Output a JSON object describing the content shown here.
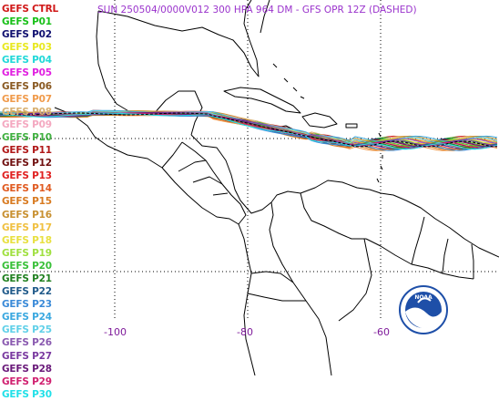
{
  "title": "SUN 250504/0000V012  300 HPA 964 DM - GFS OPR 12Z (DASHED)",
  "legend": [
    {
      "label": "GEFS CTRL",
      "color": "#d01818"
    },
    {
      "label": "GEFS P01",
      "color": "#18c018"
    },
    {
      "label": "GEFS P02",
      "color": "#101070"
    },
    {
      "label": "GEFS P03",
      "color": "#e8e820"
    },
    {
      "label": "GEFS P04",
      "color": "#20d8d8"
    },
    {
      "label": "GEFS P05",
      "color": "#e020e0"
    },
    {
      "label": "GEFS P06",
      "color": "#8a5a22"
    },
    {
      "label": "GEFS P07",
      "color": "#f09a4a"
    },
    {
      "label": "GEFS P08",
      "color": "#d8b070"
    },
    {
      "label": "GEFS P09",
      "color": "#f4a8c0"
    },
    {
      "label": "GEFS P10",
      "color": "#40b040"
    },
    {
      "label": "GEFS P11",
      "color": "#b01818"
    },
    {
      "label": "GEFS P12",
      "color": "#701010"
    },
    {
      "label": "GEFS P13",
      "color": "#e02020"
    },
    {
      "label": "GEFS P14",
      "color": "#e05a20"
    },
    {
      "label": "GEFS P15",
      "color": "#d87a20"
    },
    {
      "label": "GEFS P16",
      "color": "#c89030"
    },
    {
      "label": "GEFS P17",
      "color": "#f0c040"
    },
    {
      "label": "GEFS P18",
      "color": "#e8e040"
    },
    {
      "label": "GEFS P19",
      "color": "#a0e040"
    },
    {
      "label": "GEFS P20",
      "color": "#38c038"
    },
    {
      "label": "GEFS P21",
      "color": "#208020"
    },
    {
      "label": "GEFS P22",
      "color": "#205a8a"
    },
    {
      "label": "GEFS P23",
      "color": "#3a8ad8"
    },
    {
      "label": "GEFS P24",
      "color": "#3aa8e0"
    },
    {
      "label": "GEFS P25",
      "color": "#60d0e8"
    },
    {
      "label": "GEFS P26",
      "color": "#8a5ab0"
    },
    {
      "label": "GEFS P27",
      "color": "#7a3aa0"
    },
    {
      "label": "GEFS P28",
      "color": "#6a1a7a"
    },
    {
      "label": "GEFS P29",
      "color": "#d02070"
    },
    {
      "label": "GEFS P30",
      "color": "#20e0e8"
    }
  ],
  "longitude_labels": [
    "-100",
    "-80",
    "-60"
  ],
  "logo_text": "NOAA",
  "colors": {
    "title": "#9a33cc",
    "longitude_labels": "#7e1a9a",
    "coastline": "#000000",
    "gridline": "#000000",
    "logo_blue": "#1e4fa8"
  }
}
